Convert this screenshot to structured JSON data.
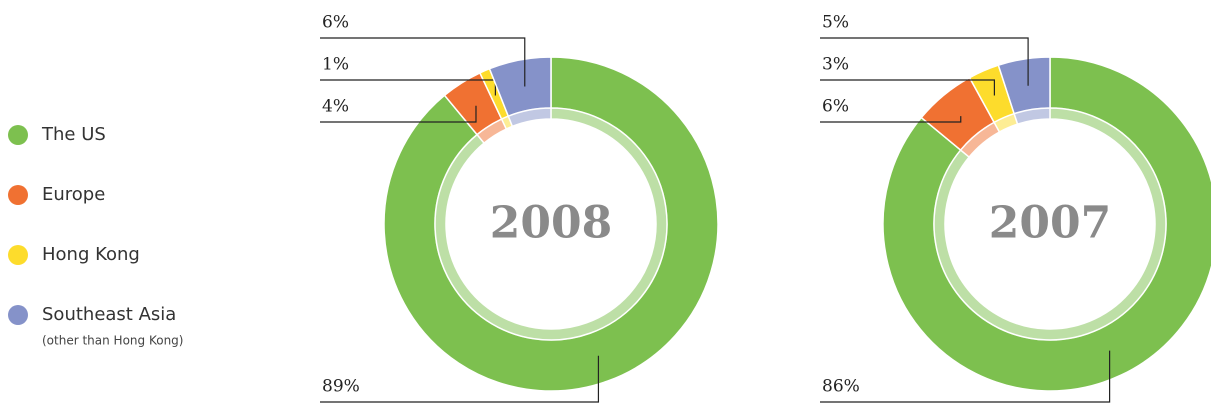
{
  "legend": {
    "categories": [
      "The US",
      "Europe",
      "Hong Kong",
      "Southeast Asia"
    ],
    "colors": [
      "#7dc04f",
      "#f07132",
      "#fddc2c",
      "#8592c9"
    ],
    "note": "(other than Hong Kong)"
  },
  "chart_data": [
    {
      "type": "donut",
      "title": "2008",
      "values": [
        89,
        4,
        1,
        6
      ],
      "value_labels": [
        "89%",
        "4%",
        "1%",
        "6%"
      ]
    },
    {
      "type": "donut",
      "title": "2007",
      "values": [
        86,
        6,
        3,
        5
      ],
      "value_labels": [
        "86%",
        "6%",
        "3%",
        "5%"
      ]
    }
  ]
}
